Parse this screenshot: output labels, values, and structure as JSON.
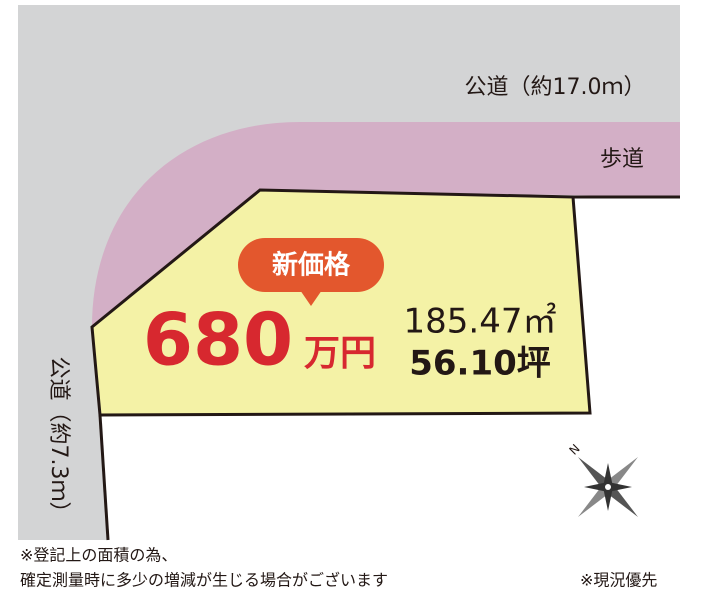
{
  "map": {
    "road_top": "公道（約17.0ｍ）",
    "sidewalk": "歩道",
    "road_left": "公道（約7.3ｍ）",
    "badge": "新価格",
    "price": "680",
    "price_unit": "万円",
    "area_sqm": "185.47㎡",
    "area_tsubo": "56.10坪",
    "compass": "N"
  },
  "notes": {
    "line1": "※登記上の面積の為、",
    "line2": "確定測量時に多少の増減が生じる場合がございます",
    "priority": "※現況優先"
  }
}
